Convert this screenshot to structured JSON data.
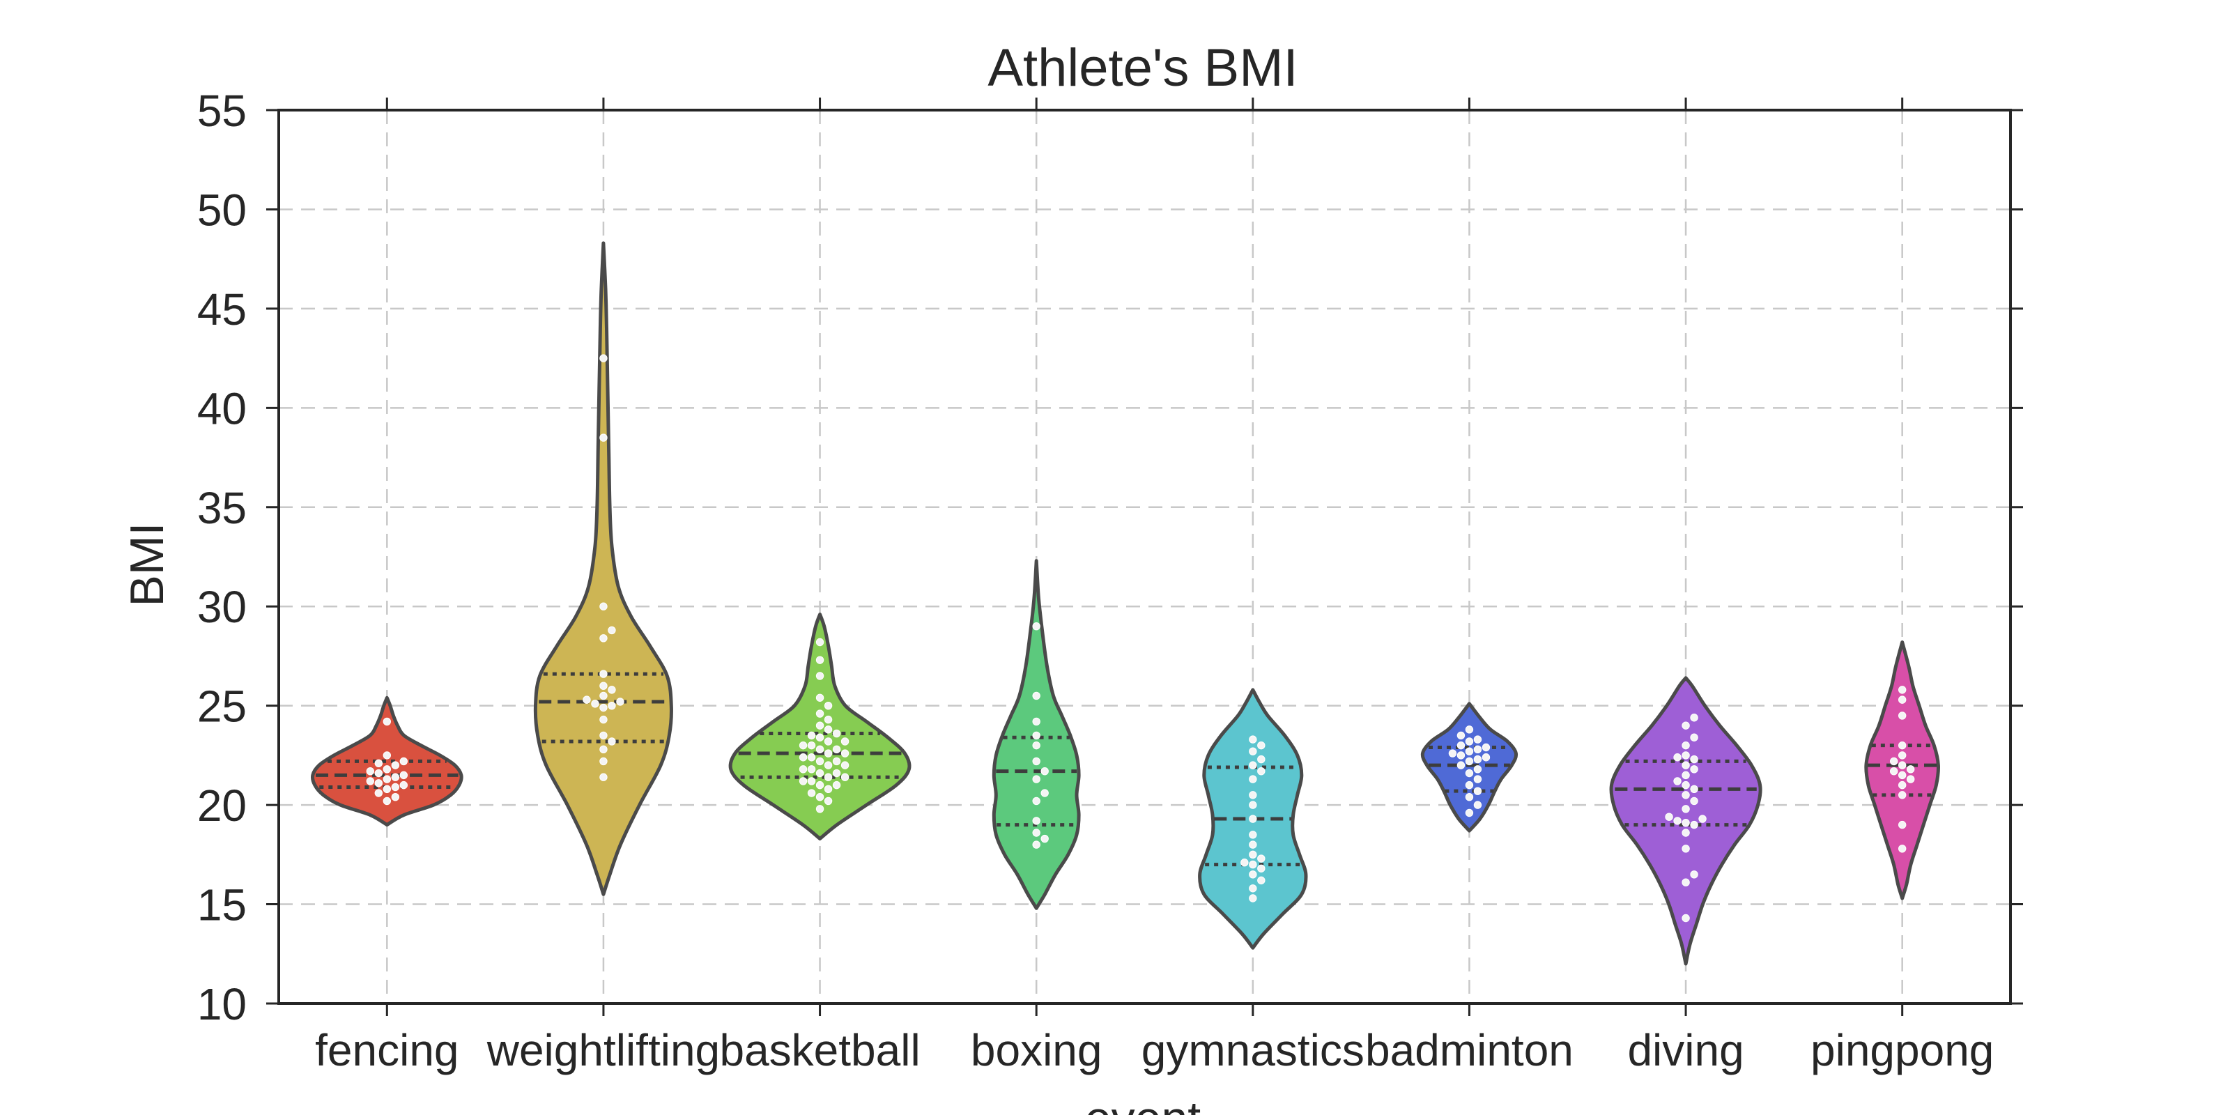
{
  "chart_data": {
    "type": "violin",
    "title": "Athlete's BMI",
    "xlabel": "event",
    "ylabel": "BMI",
    "ylim": [
      10,
      55
    ],
    "yticks": [
      10,
      15,
      20,
      25,
      30,
      35,
      40,
      45,
      50,
      55
    ],
    "grid": true,
    "categories": [
      "fencing",
      "weightlifting",
      "basketball",
      "boxing",
      "gymnastics",
      "badminton",
      "diving",
      "pingpong"
    ],
    "colors": [
      "#d9513f",
      "#cdb554",
      "#86cc52",
      "#5cc97d",
      "#5cc5cf",
      "#4f6ad6",
      "#9e5fd6",
      "#d84fa8"
    ],
    "violins": [
      {
        "name": "fencing",
        "min": 19.0,
        "max": 25.4,
        "q1": 20.9,
        "median": 21.5,
        "q3": 22.2,
        "profile": [
          [
            19.0,
            0.0
          ],
          [
            19.5,
            0.08
          ],
          [
            20.0,
            0.22
          ],
          [
            20.5,
            0.3
          ],
          [
            21.0,
            0.34
          ],
          [
            21.5,
            0.35
          ],
          [
            22.0,
            0.32
          ],
          [
            22.5,
            0.25
          ],
          [
            23.0,
            0.16
          ],
          [
            23.5,
            0.08
          ],
          [
            24.0,
            0.05
          ],
          [
            24.5,
            0.03
          ],
          [
            25.0,
            0.015
          ],
          [
            25.4,
            0.0
          ]
        ],
        "points": [
          20.2,
          20.4,
          20.6,
          20.8,
          20.9,
          21.0,
          21.1,
          21.2,
          21.3,
          21.4,
          21.5,
          21.6,
          21.7,
          21.8,
          22.0,
          22.1,
          22.2,
          22.5,
          24.2
        ]
      },
      {
        "name": "weightlifting",
        "min": 15.5,
        "max": 48.3,
        "q1": 23.2,
        "median": 25.2,
        "q3": 26.6,
        "profile": [
          [
            15.5,
            0.0
          ],
          [
            16.5,
            0.03
          ],
          [
            18,
            0.08
          ],
          [
            20,
            0.17
          ],
          [
            22,
            0.27
          ],
          [
            23.5,
            0.31
          ],
          [
            25,
            0.32
          ],
          [
            26.5,
            0.3
          ],
          [
            28,
            0.22
          ],
          [
            29.5,
            0.13
          ],
          [
            31,
            0.07
          ],
          [
            33,
            0.04
          ],
          [
            35,
            0.03
          ],
          [
            38,
            0.025
          ],
          [
            41,
            0.02
          ],
          [
            44,
            0.015
          ],
          [
            46,
            0.01
          ],
          [
            48.3,
            0.0
          ]
        ],
        "points": [
          21.4,
          22.2,
          22.8,
          23.2,
          23.5,
          24.3,
          24.9,
          25.0,
          25.1,
          25.2,
          25.3,
          25.5,
          25.8,
          26.0,
          26.6,
          28.4,
          28.8,
          30.0,
          38.5,
          42.5
        ]
      },
      {
        "name": "basketball",
        "min": 18.3,
        "max": 29.6,
        "q1": 21.4,
        "median": 22.6,
        "q3": 23.6,
        "profile": [
          [
            18.3,
            0.0
          ],
          [
            19.0,
            0.08
          ],
          [
            20.0,
            0.22
          ],
          [
            21.0,
            0.36
          ],
          [
            21.8,
            0.42
          ],
          [
            22.6,
            0.4
          ],
          [
            23.4,
            0.32
          ],
          [
            24.2,
            0.22
          ],
          [
            25.0,
            0.12
          ],
          [
            26.0,
            0.07
          ],
          [
            27.0,
            0.055
          ],
          [
            28.0,
            0.04
          ],
          [
            29.0,
            0.02
          ],
          [
            29.6,
            0.0
          ]
        ],
        "points": [
          19.8,
          20.2,
          20.4,
          20.6,
          20.8,
          21.0,
          21.0,
          21.2,
          21.2,
          21.4,
          21.4,
          21.6,
          21.6,
          21.8,
          21.8,
          22.0,
          22.0,
          22.2,
          22.2,
          22.4,
          22.4,
          22.6,
          22.6,
          22.8,
          22.8,
          23.0,
          23.0,
          23.2,
          23.2,
          23.4,
          23.5,
          23.6,
          23.8,
          24.0,
          24.3,
          24.6,
          25.0,
          25.4,
          26.5,
          27.3,
          28.2
        ]
      },
      {
        "name": "boxing",
        "min": 14.8,
        "max": 32.3,
        "q1": 19.0,
        "median": 21.7,
        "q3": 23.4,
        "profile": [
          [
            14.8,
            0.0
          ],
          [
            15.5,
            0.04
          ],
          [
            16.5,
            0.09
          ],
          [
            17.5,
            0.15
          ],
          [
            18.5,
            0.19
          ],
          [
            19.5,
            0.2
          ],
          [
            20.5,
            0.19
          ],
          [
            21.5,
            0.2
          ],
          [
            22.5,
            0.19
          ],
          [
            23.5,
            0.16
          ],
          [
            24.5,
            0.12
          ],
          [
            25.5,
            0.08
          ],
          [
            27,
            0.05
          ],
          [
            29,
            0.025
          ],
          [
            30.5,
            0.01
          ],
          [
            32.3,
            0.0
          ]
        ],
        "points": [
          18.0,
          18.3,
          18.6,
          19.2,
          20.2,
          20.6,
          21.3,
          21.7,
          22.2,
          23.0,
          23.5,
          24.2,
          25.5,
          29.0
        ]
      },
      {
        "name": "gymnastics",
        "min": 12.8,
        "max": 25.8,
        "q1": 17.0,
        "median": 19.3,
        "q3": 21.9,
        "profile": [
          [
            12.8,
            0.0
          ],
          [
            13.5,
            0.05
          ],
          [
            14.5,
            0.14
          ],
          [
            15.5,
            0.23
          ],
          [
            16.5,
            0.25
          ],
          [
            17.5,
            0.22
          ],
          [
            18.5,
            0.19
          ],
          [
            19.5,
            0.19
          ],
          [
            20.5,
            0.21
          ],
          [
            21.5,
            0.23
          ],
          [
            22.5,
            0.21
          ],
          [
            23.5,
            0.15
          ],
          [
            24.5,
            0.07
          ],
          [
            25.2,
            0.03
          ],
          [
            25.8,
            0.0
          ]
        ],
        "points": [
          15.3,
          15.8,
          16.2,
          16.5,
          16.8,
          17.0,
          17.1,
          17.3,
          17.5,
          18.0,
          18.5,
          19.3,
          20.0,
          20.5,
          21.3,
          21.7,
          22.0,
          22.3,
          22.7,
          23.0,
          23.3
        ]
      },
      {
        "name": "badminton",
        "min": 18.7,
        "max": 25.1,
        "q1": 20.7,
        "median": 22.0,
        "q3": 22.9,
        "profile": [
          [
            18.7,
            0.0
          ],
          [
            19.3,
            0.05
          ],
          [
            20.0,
            0.09
          ],
          [
            20.7,
            0.12
          ],
          [
            21.3,
            0.15
          ],
          [
            22.0,
            0.2
          ],
          [
            22.6,
            0.22
          ],
          [
            23.2,
            0.18
          ],
          [
            23.8,
            0.1
          ],
          [
            24.4,
            0.05
          ],
          [
            25.1,
            0.0
          ]
        ],
        "points": [
          19.6,
          20.0,
          20.4,
          20.7,
          21.0,
          21.3,
          21.6,
          21.8,
          22.0,
          22.2,
          22.3,
          22.4,
          22.5,
          22.6,
          22.7,
          22.8,
          22.9,
          23.0,
          23.2,
          23.3,
          23.5,
          23.8
        ]
      },
      {
        "name": "diving",
        "min": 12.0,
        "max": 26.4,
        "q1": 19.0,
        "median": 20.8,
        "q3": 22.2,
        "profile": [
          [
            12.0,
            0.0
          ],
          [
            13.0,
            0.02
          ],
          [
            14.0,
            0.05
          ],
          [
            15.0,
            0.08
          ],
          [
            16.0,
            0.12
          ],
          [
            17.0,
            0.17
          ],
          [
            18.0,
            0.23
          ],
          [
            19.0,
            0.3
          ],
          [
            20.0,
            0.34
          ],
          [
            21.0,
            0.35
          ],
          [
            22.0,
            0.31
          ],
          [
            23.0,
            0.24
          ],
          [
            24.0,
            0.16
          ],
          [
            25.0,
            0.09
          ],
          [
            26.0,
            0.03
          ],
          [
            26.4,
            0.0
          ]
        ],
        "points": [
          14.3,
          16.1,
          16.5,
          17.8,
          18.6,
          19.0,
          19.1,
          19.2,
          19.3,
          19.4,
          19.8,
          20.2,
          20.5,
          20.8,
          21.0,
          21.2,
          21.5,
          21.8,
          22.0,
          22.3,
          22.4,
          22.5,
          23.0,
          23.4,
          24.0,
          24.4
        ]
      },
      {
        "name": "pingpong",
        "min": 15.3,
        "max": 28.2,
        "q1": 20.5,
        "median": 22.0,
        "q3": 23.0,
        "profile": [
          [
            15.3,
            0.0
          ],
          [
            16.0,
            0.02
          ],
          [
            17.0,
            0.04
          ],
          [
            18.0,
            0.07
          ],
          [
            19.0,
            0.1
          ],
          [
            20.0,
            0.13
          ],
          [
            21.0,
            0.16
          ],
          [
            22.0,
            0.17
          ],
          [
            23.0,
            0.15
          ],
          [
            24.0,
            0.11
          ],
          [
            25.0,
            0.08
          ],
          [
            26.0,
            0.05
          ],
          [
            27.0,
            0.03
          ],
          [
            28.2,
            0.0
          ]
        ],
        "points": [
          17.8,
          19.0,
          20.5,
          21.0,
          21.3,
          21.5,
          21.7,
          21.8,
          22.0,
          22.2,
          22.5,
          23.0,
          24.5,
          25.3,
          25.8
        ]
      }
    ]
  }
}
